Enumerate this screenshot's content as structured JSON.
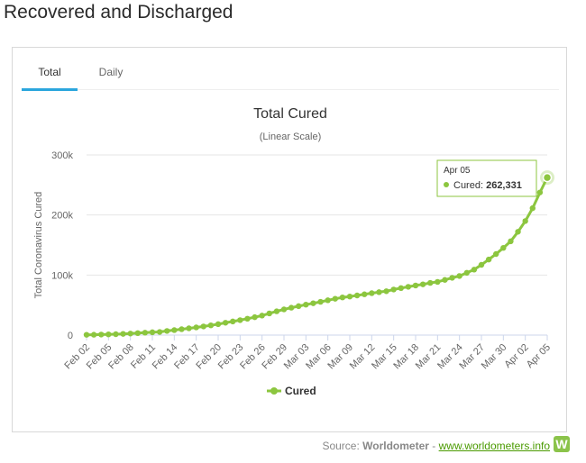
{
  "page": {
    "title": "Recovered and Discharged"
  },
  "tabs": [
    {
      "label": "Total",
      "active": true
    },
    {
      "label": "Daily",
      "active": false
    }
  ],
  "source": {
    "prefix": "Source: ",
    "name": "Worldometer",
    "separator": " - ",
    "link": "www.worldometers.info",
    "logo_letter": "W"
  },
  "tooltip": {
    "date": "Apr 05",
    "series": "Cured",
    "value_label": "262,331"
  },
  "colors": {
    "series": "#8cc63f",
    "tab_active": "#2ba6dd",
    "grid": "#e6e6e6"
  },
  "chart_data": {
    "type": "line",
    "title": "Total Cured",
    "subtitle": "(Linear Scale)",
    "ylabel": "Total Coronavirus Cured",
    "xlabel": "",
    "ylim": [
      0,
      300000
    ],
    "yticks": [
      0,
      100000,
      200000,
      300000
    ],
    "ytick_labels": [
      "0",
      "100k",
      "200k",
      "300k"
    ],
    "xtick_labels": [
      "Feb 02",
      "Feb 05",
      "Feb 08",
      "Feb 11",
      "Feb 14",
      "Feb 17",
      "Feb 20",
      "Feb 23",
      "Feb 26",
      "Feb 29",
      "Mar 03",
      "Mar 06",
      "Mar 09",
      "Mar 12",
      "Mar 15",
      "Mar 18",
      "Mar 21",
      "Mar 24",
      "Mar 27",
      "Mar 30",
      "Apr 02",
      "Apr 05"
    ],
    "grid": true,
    "legend": "bottom",
    "series": [
      {
        "name": "Cured",
        "x": [
          "Feb 02",
          "Feb 03",
          "Feb 04",
          "Feb 05",
          "Feb 06",
          "Feb 07",
          "Feb 08",
          "Feb 09",
          "Feb 10",
          "Feb 11",
          "Feb 12",
          "Feb 13",
          "Feb 14",
          "Feb 15",
          "Feb 16",
          "Feb 17",
          "Feb 18",
          "Feb 19",
          "Feb 20",
          "Feb 21",
          "Feb 22",
          "Feb 23",
          "Feb 24",
          "Feb 25",
          "Feb 26",
          "Feb 27",
          "Feb 28",
          "Feb 29",
          "Mar 01",
          "Mar 02",
          "Mar 03",
          "Mar 04",
          "Mar 05",
          "Mar 06",
          "Mar 07",
          "Mar 08",
          "Mar 09",
          "Mar 10",
          "Mar 11",
          "Mar 12",
          "Mar 13",
          "Mar 14",
          "Mar 15",
          "Mar 16",
          "Mar 17",
          "Mar 18",
          "Mar 19",
          "Mar 20",
          "Mar 21",
          "Mar 22",
          "Mar 23",
          "Mar 24",
          "Mar 25",
          "Mar 26",
          "Mar 27",
          "Mar 28",
          "Mar 29",
          "Mar 30",
          "Mar 31",
          "Apr 01",
          "Apr 02",
          "Apr 03",
          "Apr 04",
          "Apr 05"
        ],
        "values": [
          500,
          600,
          900,
          1200,
          1500,
          2000,
          2600,
          3300,
          4000,
          4700,
          5200,
          6900,
          8300,
          9800,
          11300,
          12800,
          14400,
          16200,
          18200,
          20600,
          22700,
          24900,
          27300,
          29800,
          32500,
          36100,
          39600,
          42800,
          45600,
          48200,
          50700,
          53000,
          55400,
          58000,
          60500,
          62700,
          64200,
          66000,
          67900,
          69800,
          71500,
          73100,
          75900,
          78300,
          80400,
          82600,
          84500,
          86900,
          88600,
          91900,
          95400,
          98400,
          103700,
          109000,
          117000,
          125800,
          135000,
          145200,
          156200,
          172100,
          189900,
          211300,
          237500,
          262331
        ]
      }
    ]
  }
}
